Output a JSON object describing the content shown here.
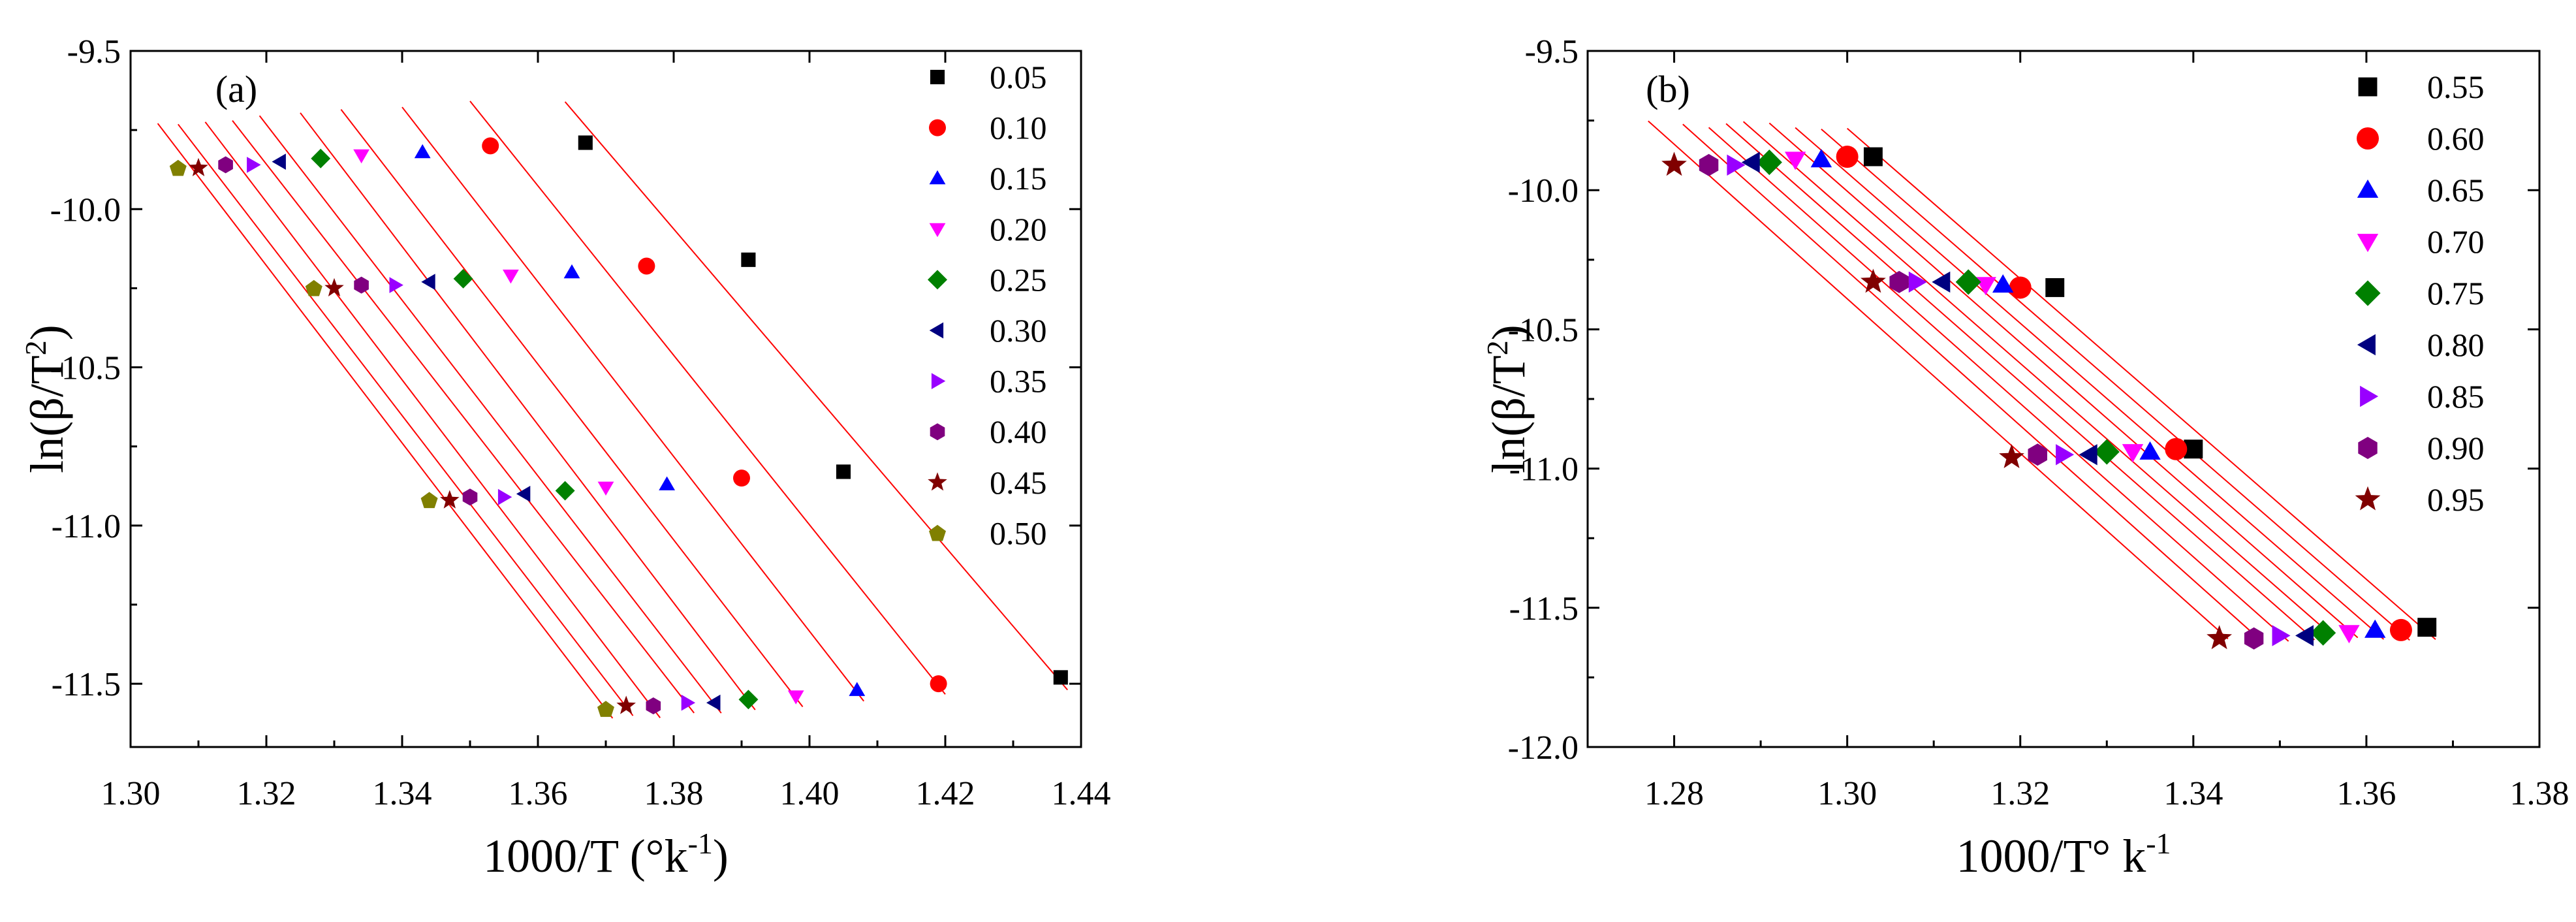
{
  "chart_data": [
    {
      "type": "scatter",
      "panel_label": "(a)",
      "xlabel": "1000/T (°k",
      "xlabel_sup": "-1",
      "xlabel_close": ")",
      "ylabel": "ln(β/T",
      "ylabel_sup": "2",
      "ylabel_close": ")",
      "xlim": [
        1.3,
        1.44
      ],
      "ylim": [
        -11.7,
        -9.5
      ],
      "xticks": [
        1.3,
        1.32,
        1.34,
        1.36,
        1.38,
        1.4,
        1.42,
        1.44
      ],
      "xtick_labels": [
        "1.30",
        "1.32",
        "1.34",
        "1.36",
        "1.38",
        "1.40",
        "1.42",
        "1.44"
      ],
      "yticks": [
        -9.5,
        -10.0,
        -10.5,
        -11.0,
        -11.5
      ],
      "ytick_labels": [
        "-9.5",
        "-10.0",
        "-10.5",
        "-11.0",
        "-11.5"
      ],
      "fit_lines": true,
      "series": [
        {
          "name": "0.05",
          "marker": "square",
          "color": "#000000",
          "x": [
            1.367,
            1.391,
            1.405,
            1.437
          ],
          "y": [
            -9.79,
            -10.16,
            -10.83,
            -11.48
          ]
        },
        {
          "name": "0.10",
          "marker": "circle",
          "color": "#ff0000",
          "x": [
            1.353,
            1.376,
            1.39,
            1.419
          ],
          "y": [
            -9.8,
            -10.18,
            -10.85,
            -11.5
          ]
        },
        {
          "name": "0.15",
          "marker": "triangle-up",
          "color": "#0000ff",
          "x": [
            1.343,
            1.365,
            1.379,
            1.407
          ],
          "y": [
            -9.82,
            -10.2,
            -10.87,
            -11.52
          ]
        },
        {
          "name": "0.20",
          "marker": "triangle-down",
          "color": "#ff00ff",
          "x": [
            1.334,
            1.356,
            1.37,
            1.398
          ],
          "y": [
            -9.83,
            -10.21,
            -10.88,
            -11.54
          ]
        },
        {
          "name": "0.25",
          "marker": "diamond",
          "color": "#008000",
          "x": [
            1.328,
            1.349,
            1.364,
            1.391
          ],
          "y": [
            -9.84,
            -10.22,
            -10.89,
            -11.55
          ]
        },
        {
          "name": "0.30",
          "marker": "triangle-left",
          "color": "#000080",
          "x": [
            1.322,
            1.344,
            1.358,
            1.386
          ],
          "y": [
            -9.85,
            -10.23,
            -10.9,
            -11.56
          ]
        },
        {
          "name": "0.35",
          "marker": "triangle-right",
          "color": "#9900ff",
          "x": [
            1.318,
            1.339,
            1.355,
            1.382
          ],
          "y": [
            -9.86,
            -10.24,
            -10.91,
            -11.56
          ]
        },
        {
          "name": "0.40",
          "marker": "hexagon",
          "color": "#800080",
          "x": [
            1.314,
            1.334,
            1.35,
            1.377
          ],
          "y": [
            -9.86,
            -10.24,
            -10.91,
            -11.57
          ]
        },
        {
          "name": "0.45",
          "marker": "star",
          "color": "#800000",
          "x": [
            1.31,
            1.33,
            1.347,
            1.373
          ],
          "y": [
            -9.87,
            -10.25,
            -10.92,
            -11.57
          ]
        },
        {
          "name": "0.50",
          "marker": "pentagon",
          "color": "#808000",
          "x": [
            1.307,
            1.327,
            1.344,
            1.37
          ],
          "y": [
            -9.87,
            -10.25,
            -10.92,
            -11.58
          ]
        }
      ]
    },
    {
      "type": "scatter",
      "panel_label": "(b)",
      "xlabel": "1000/T° k",
      "xlabel_sup": "-1",
      "xlabel_close": "",
      "ylabel": "ln(β/T",
      "ylabel_sup": "2",
      "ylabel_close": ")",
      "xlim": [
        1.27,
        1.38
      ],
      "ylim": [
        -12.0,
        -9.5
      ],
      "xticks": [
        1.28,
        1.3,
        1.32,
        1.34,
        1.36,
        1.38
      ],
      "xtick_labels": [
        "1.28",
        "1.30",
        "1.32",
        "1.34",
        "1.36",
        "1.38"
      ],
      "yticks": [
        -9.5,
        -10.0,
        -10.5,
        -11.0,
        -11.5,
        -12.0
      ],
      "ytick_labels": [
        "-9.5",
        "-10.0",
        "-10.5",
        "-11.0",
        "-11.5",
        "-12.0"
      ],
      "fit_lines": true,
      "series": [
        {
          "name": "0.55",
          "marker": "square",
          "color": "#000000",
          "x": [
            1.303,
            1.324,
            1.34,
            1.367
          ],
          "y": [
            -9.88,
            -10.35,
            -10.93,
            -11.57
          ]
        },
        {
          "name": "0.60",
          "marker": "circle",
          "color": "#ff0000",
          "x": [
            1.3,
            1.32,
            1.338,
            1.364
          ],
          "y": [
            -9.88,
            -10.35,
            -10.93,
            -11.58
          ]
        },
        {
          "name": "0.65",
          "marker": "triangle-up",
          "color": "#0000ff",
          "x": [
            1.297,
            1.318,
            1.335,
            1.361
          ],
          "y": [
            -9.89,
            -10.34,
            -10.94,
            -11.58
          ]
        },
        {
          "name": "0.70",
          "marker": "triangle-down",
          "color": "#ff00ff",
          "x": [
            1.294,
            1.316,
            1.333,
            1.358
          ],
          "y": [
            -9.89,
            -10.34,
            -10.94,
            -11.59
          ]
        },
        {
          "name": "0.75",
          "marker": "diamond",
          "color": "#008000",
          "x": [
            1.291,
            1.314,
            1.33,
            1.355
          ],
          "y": [
            -9.9,
            -10.33,
            -10.94,
            -11.59
          ]
        },
        {
          "name": "0.80",
          "marker": "triangle-left",
          "color": "#000080",
          "x": [
            1.289,
            1.311,
            1.328,
            1.353
          ],
          "y": [
            -9.9,
            -10.33,
            -10.95,
            -11.6
          ]
        },
        {
          "name": "0.85",
          "marker": "triangle-right",
          "color": "#9900ff",
          "x": [
            1.287,
            1.308,
            1.325,
            1.35
          ],
          "y": [
            -9.91,
            -10.33,
            -10.95,
            -11.6
          ]
        },
        {
          "name": "0.90",
          "marker": "hexagon",
          "color": "#800080",
          "x": [
            1.284,
            1.306,
            1.322,
            1.347
          ],
          "y": [
            -9.91,
            -10.33,
            -10.95,
            -11.61
          ]
        },
        {
          "name": "0.95",
          "marker": "star",
          "color": "#800000",
          "x": [
            1.28,
            1.303,
            1.319,
            1.343
          ],
          "y": [
            -9.91,
            -10.33,
            -10.96,
            -11.61
          ]
        }
      ]
    }
  ]
}
